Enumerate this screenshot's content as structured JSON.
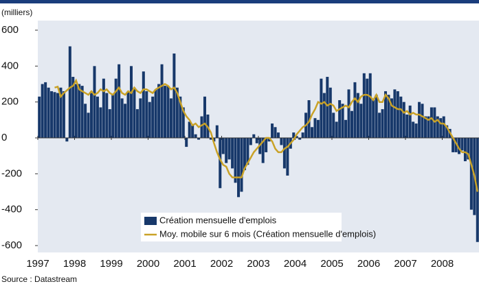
{
  "chart_data": {
    "type": "bar_line",
    "y_unit_label": "(milliers)",
    "source": "Source : Datastream",
    "categories": [
      null,
      null,
      null,
      null,
      null,
      null,
      null,
      null,
      null,
      null,
      null,
      null,
      null,
      null,
      null,
      null,
      null,
      null,
      null,
      null,
      null,
      null,
      null,
      null,
      null,
      null,
      null,
      null,
      null,
      null,
      null,
      null,
      null,
      null,
      null,
      null,
      null,
      null,
      null,
      null,
      null,
      null,
      null,
      null,
      null,
      null,
      null,
      null,
      null,
      null,
      null,
      null,
      null,
      null,
      null,
      null,
      null,
      null,
      null,
      null,
      null,
      null,
      null,
      null,
      null,
      null,
      null,
      null,
      null,
      null,
      null,
      null,
      null,
      null,
      null,
      null,
      null,
      null,
      null,
      null,
      null,
      null,
      null,
      null,
      null,
      null,
      null,
      null,
      null,
      null,
      null,
      null,
      null,
      null,
      null,
      null,
      null,
      null,
      null,
      null,
      null,
      null,
      null,
      null,
      null,
      null,
      null,
      null,
      null,
      null,
      null,
      null,
      null,
      null,
      null,
      null,
      null,
      null,
      null,
      null,
      null,
      null,
      null,
      null,
      null,
      null,
      null,
      null,
      null,
      null,
      null,
      null,
      null,
      null,
      null,
      null,
      null,
      null,
      null,
      null,
      null,
      null,
      null,
      null
    ],
    "series": [
      {
        "name": "Création mensuelle d'emplois",
        "kind": "bar",
        "color": "#17386a",
        "values": [
          230,
          300,
          310,
          280,
          260,
          255,
          250,
          280,
          260,
          -20,
          510,
          340,
          300,
          300,
          290,
          190,
          140,
          250,
          400,
          230,
          170,
          330,
          250,
          160,
          240,
          330,
          410,
          220,
          190,
          260,
          400,
          280,
          160,
          220,
          370,
          260,
          200,
          230,
          270,
          300,
          410,
          290,
          290,
          220,
          470,
          280,
          230,
          170,
          -50,
          90,
          70,
          20,
          -10,
          120,
          230,
          130,
          -10,
          -20,
          70,
          -280,
          -90,
          -140,
          -120,
          -170,
          -250,
          -330,
          -300,
          -180,
          -150,
          -40,
          20,
          -30,
          -90,
          -140,
          -80,
          -20,
          80,
          60,
          30,
          -40,
          -170,
          -210,
          -60,
          30,
          10,
          -10,
          30,
          140,
          210,
          60,
          110,
          100,
          330,
          250,
          340,
          280,
          140,
          90,
          210,
          190,
          100,
          270,
          150,
          310,
          250,
          190,
          360,
          330,
          360,
          210,
          240,
          140,
          160,
          260,
          240,
          220,
          270,
          260,
          230,
          200,
          130,
          180,
          90,
          80,
          200,
          190,
          120,
          120,
          170,
          170,
          120,
          110,
          120,
          70,
          50,
          -80,
          -80,
          -90,
          -70,
          -130,
          -120,
          -400,
          -430,
          -580
        ]
      },
      {
        "name": "Moy. mobile sur 6 mois (Création mensuelle d'emplois)",
        "kind": "line",
        "color": "#c9a227",
        "values": [
          null,
          null,
          null,
          null,
          null,
          280,
          285,
          230,
          250,
          265,
          280,
          290,
          320,
          270,
          260,
          250,
          240,
          260,
          240,
          250,
          270,
          260,
          270,
          250,
          240,
          260,
          280,
          250,
          240,
          260,
          250,
          280,
          260,
          250,
          270,
          270,
          260,
          250,
          270,
          280,
          290,
          300,
          290,
          270,
          280,
          250,
          200,
          150,
          120,
          100,
          70,
          80,
          60,
          70,
          80,
          60,
          30,
          -30,
          -80,
          -120,
          -150,
          -160,
          -200,
          -220,
          -220,
          -220,
          -220,
          -170,
          -140,
          -110,
          -80,
          -60,
          -40,
          -20,
          0,
          0,
          -20,
          -60,
          -80,
          -80,
          -60,
          -50,
          -30,
          -10,
          20,
          40,
          60,
          70,
          90,
          130,
          160,
          200,
          190,
          200,
          180,
          190,
          180,
          150,
          160,
          170,
          180,
          170,
          200,
          220,
          200,
          230,
          240,
          240,
          230,
          210,
          240,
          200,
          200,
          240,
          220,
          180,
          170,
          160,
          160,
          140,
          150,
          130,
          140,
          130,
          130,
          120,
          110,
          100,
          110,
          90,
          100,
          80,
          80,
          60,
          30,
          0,
          -30,
          -60,
          -80,
          -80,
          -90,
          -150,
          -210,
          -300
        ]
      }
    ],
    "ylim": [
      -600,
      600
    ],
    "yticks": [
      -600,
      -400,
      -200,
      0,
      200,
      400,
      600
    ],
    "xlim": [
      1997,
      2009
    ],
    "xticks": [
      1997,
      1998,
      1999,
      2000,
      2001,
      2002,
      2003,
      2004,
      2005,
      2006,
      2007,
      2008
    ],
    "legend": "bottom-center",
    "background": "#e4e9f1"
  }
}
